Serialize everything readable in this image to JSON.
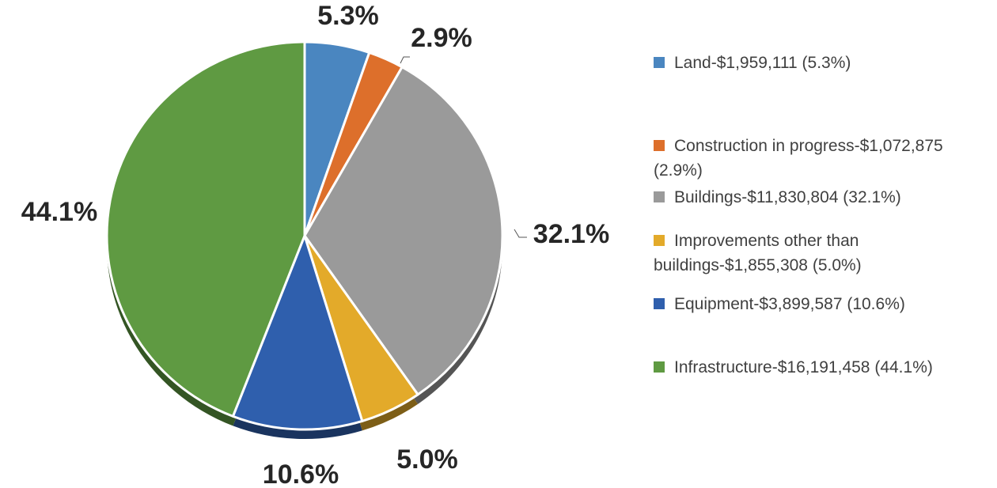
{
  "chart_data": {
    "type": "pie",
    "categories": [
      "Land-$1,959,111 (5.3%)",
      "Construction in progress-$1,072,875 (2.9%)",
      "Buildings-$11,830,804 (32.1%)",
      "Improvements other than buildings-$1,855,308 (5.0%)",
      "Equipment-$3,899,587 (10.6%)",
      "Infrastructure-$16,191,458 (44.1%)"
    ],
    "values": [
      5.3,
      2.9,
      32.1,
      5.0,
      10.6,
      44.1
    ],
    "value_labels": [
      "5.3%",
      "2.9%",
      "32.1%",
      "5.0%",
      "10.6%",
      "44.1%"
    ],
    "colors": [
      "#4a86c0",
      "#dd6f2b",
      "#9a9a9a",
      "#e3aa2a",
      "#2f5fad",
      "#5f9a42"
    ],
    "legend": "right"
  }
}
